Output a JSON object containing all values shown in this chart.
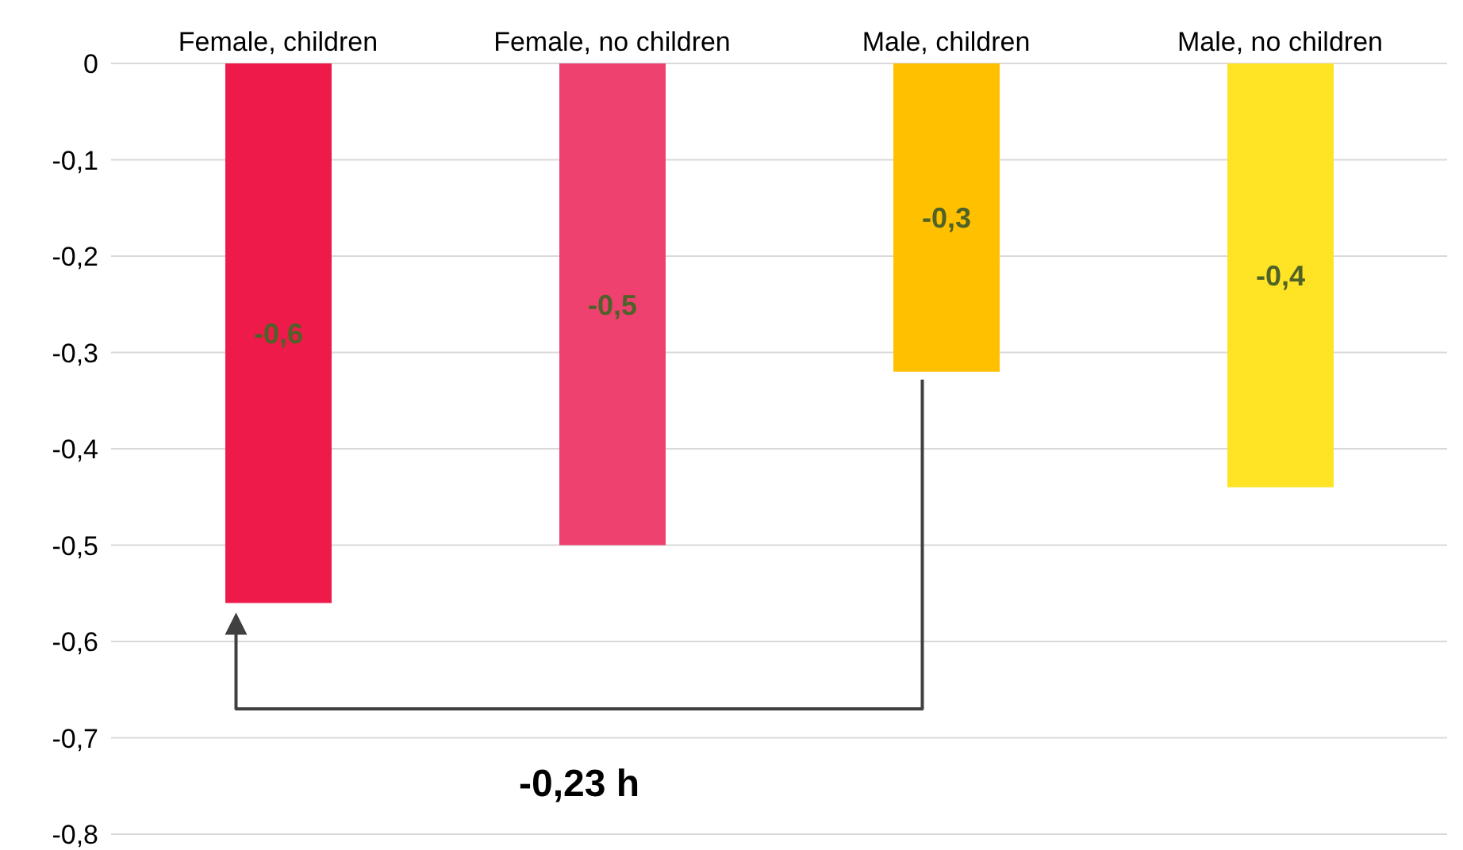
{
  "chart_data": {
    "type": "bar",
    "categories": [
      "Female, children",
      "Female, no children",
      "Male, children",
      "Male, no children"
    ],
    "values": [
      -0.56,
      -0.5,
      -0.32,
      -0.44
    ],
    "colors": [
      "#ee1a4a",
      "#ee4170",
      "#ffc000",
      "#ffe426"
    ],
    "value_labels": [
      "-0,6",
      "-0,5",
      "-0,3",
      "-0,4"
    ],
    "ylim": [
      -0.8,
      0
    ],
    "yticks": [
      {
        "value": 0,
        "label": "0"
      },
      {
        "value": -0.1,
        "label": "-0,1"
      },
      {
        "value": -0.2,
        "label": "-0,2"
      },
      {
        "value": -0.3,
        "label": "-0,3"
      },
      {
        "value": -0.4,
        "label": "-0,4"
      },
      {
        "value": -0.5,
        "label": "-0,5"
      },
      {
        "value": -0.6,
        "label": "-0,6"
      },
      {
        "value": -0.7,
        "label": "-0,7"
      },
      {
        "value": -0.8,
        "label": "-0,8"
      }
    ],
    "grid": "y",
    "annotations": [
      "-0,23 h"
    ]
  }
}
